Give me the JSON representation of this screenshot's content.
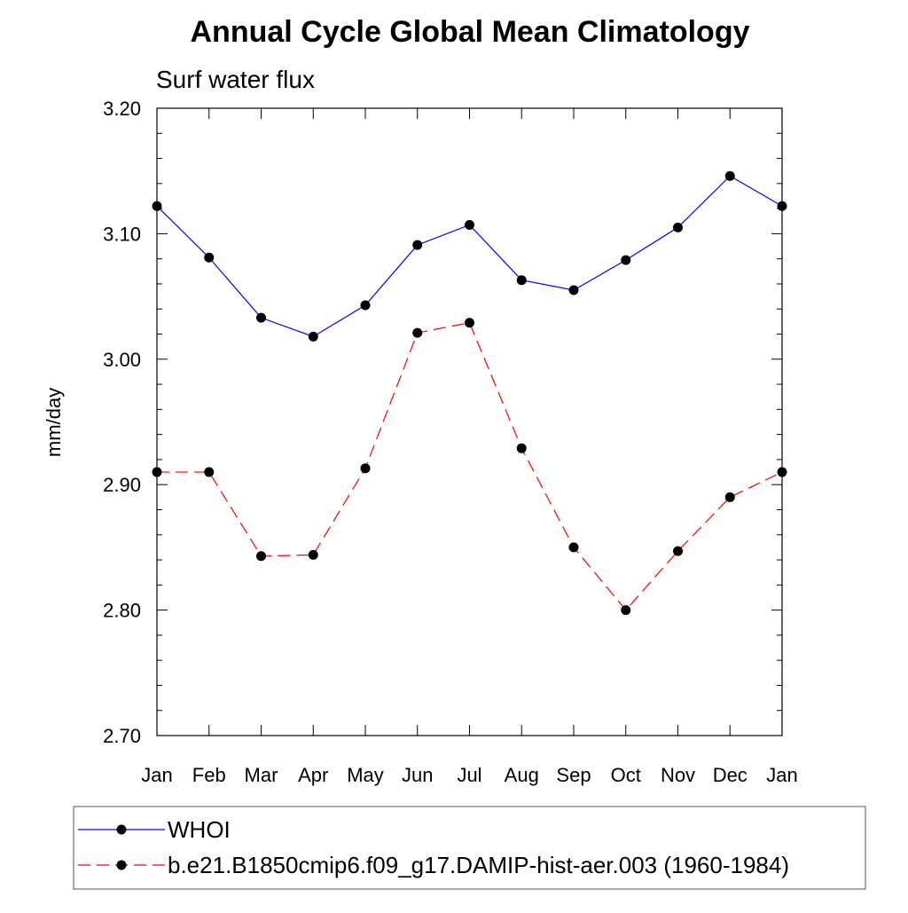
{
  "chart_data": {
    "type": "line",
    "title": "Annual Cycle Global Mean Climatology",
    "subtitle": "Surf water flux",
    "xlabel": "",
    "ylabel": "mm/day",
    "categories": [
      "Jan",
      "Feb",
      "Mar",
      "Apr",
      "May",
      "Jun",
      "Jul",
      "Aug",
      "Sep",
      "Oct",
      "Nov",
      "Dec",
      "Jan"
    ],
    "ylim": [
      2.7,
      3.2
    ],
    "y_ticks": [
      "2.70",
      "2.80",
      "2.90",
      "3.00",
      "3.10",
      "3.20"
    ],
    "grid": false,
    "legend_position": "bottom",
    "series": [
      {
        "name": "WHOI",
        "color": "#0000ff",
        "line_style": "solid",
        "marker": "filled-circle",
        "values": [
          3.122,
          3.081,
          3.033,
          3.018,
          3.043,
          3.091,
          3.107,
          3.063,
          3.055,
          3.079,
          3.105,
          3.146,
          3.122
        ]
      },
      {
        "name": "b.e21.B1850cmip6.f09_g17.DAMIP-hist-aer.003 (1960-1984)",
        "color": "#ff0000",
        "line_style": "dashed",
        "marker": "filled-circle",
        "values": [
          2.91,
          2.91,
          2.843,
          2.844,
          2.913,
          3.021,
          3.029,
          2.929,
          2.85,
          2.8,
          2.847,
          2.89,
          2.91
        ]
      }
    ]
  }
}
